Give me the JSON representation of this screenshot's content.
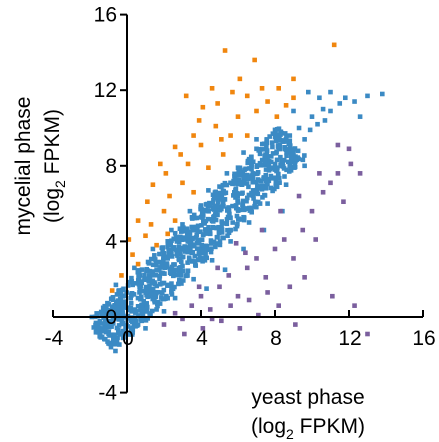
{
  "chart_data": {
    "type": "scatter",
    "xlabel": [
      "yeast phase",
      "(log",
      "2",
      " FPKM)"
    ],
    "ylabel": [
      "mycelial phase",
      "(log",
      "2",
      " FPKM)"
    ],
    "xlim": [
      -4,
      16
    ],
    "ylim": [
      -4,
      16
    ],
    "x_ticks": [
      "-4",
      "0",
      "4",
      "8",
      "12",
      "16"
    ],
    "y_ticks": [
      "-4",
      "0",
      "4",
      "8",
      "12",
      "16"
    ],
    "grid": false,
    "legend": "none",
    "series": [
      {
        "color": "#3b8ac4",
        "points": [
          [
            -1.5,
            -0.6
          ],
          [
            -1.2,
            0.3
          ],
          [
            -0.8,
            -0.2
          ],
          [
            -0.5,
            0.8
          ],
          [
            -0.3,
            -0.9
          ],
          [
            0,
            0
          ],
          [
            0.2,
            1.0
          ],
          [
            0.5,
            0.3
          ],
          [
            0.8,
            1.8
          ],
          [
            1.0,
            0.6
          ],
          [
            1.2,
            2.2
          ],
          [
            1.5,
            1.3
          ],
          [
            1.8,
            2.9
          ],
          [
            2.0,
            1.8
          ],
          [
            2.2,
            3.1
          ],
          [
            2.5,
            2.4
          ],
          [
            2.8,
            3.7
          ],
          [
            3.0,
            2.7
          ],
          [
            3.2,
            4.1
          ],
          [
            3.5,
            3.4
          ],
          [
            3.8,
            4.6
          ],
          [
            4.0,
            3.6
          ],
          [
            4.2,
            5.0
          ],
          [
            4.5,
            4.4
          ],
          [
            4.8,
            5.6
          ],
          [
            5.0,
            4.7
          ],
          [
            5.2,
            6.0
          ],
          [
            5.5,
            5.3
          ],
          [
            5.8,
            6.6
          ],
          [
            6.0,
            5.7
          ],
          [
            6.2,
            7.0
          ],
          [
            6.5,
            6.3
          ],
          [
            6.8,
            7.6
          ],
          [
            7.0,
            6.7
          ],
          [
            7.2,
            8.1
          ],
          [
            7.5,
            7.3
          ],
          [
            7.8,
            8.5
          ],
          [
            8.0,
            7.8
          ],
          [
            8.2,
            8.9
          ],
          [
            8.5,
            8.3
          ],
          [
            8.8,
            9.6
          ],
          [
            9.0,
            8.7
          ],
          [
            9.3,
            10.0
          ],
          [
            9.6,
            9.4
          ],
          [
            10.0,
            10.6
          ],
          [
            10.3,
            10.2
          ],
          [
            10.6,
            11.0
          ],
          [
            11.0,
            10.9
          ],
          [
            11.5,
            11.3
          ],
          [
            12.3,
            11.4
          ],
          [
            13.0,
            11.7
          ],
          [
            13.8,
            11.8
          ],
          [
            9.8,
            11.9
          ],
          [
            10.4,
            11.6
          ],
          [
            11.0,
            11.9
          ],
          [
            12.6,
            10.6
          ],
          [
            7.0,
            9.4
          ],
          [
            6.3,
            8.7
          ],
          [
            5.4,
            7.6
          ],
          [
            4.4,
            6.7
          ],
          [
            3.4,
            5.6
          ],
          [
            2.4,
            4.6
          ],
          [
            1.4,
            3.6
          ],
          [
            0.4,
            2.6
          ],
          [
            -0.6,
            1.7
          ],
          [
            2.6,
            1.0
          ],
          [
            3.6,
            2.0
          ],
          [
            4.6,
            3.0
          ],
          [
            5.6,
            4.0
          ],
          [
            6.6,
            5.0
          ],
          [
            7.6,
            6.0
          ],
          [
            8.6,
            7.0
          ],
          [
            9.6,
            8.0
          ],
          [
            -1.0,
            -1.4
          ],
          [
            0.6,
            -0.4
          ],
          [
            1.6,
            0.4
          ],
          [
            3.0,
            4.9
          ],
          [
            4.0,
            5.9
          ],
          [
            5.0,
            6.9
          ],
          [
            6.0,
            7.9
          ],
          [
            7.0,
            8.9
          ],
          [
            8.0,
            9.9
          ],
          [
            9.0,
            10.9
          ],
          [
            2.0,
            0.3
          ],
          [
            1.0,
            -0.6
          ],
          [
            5.3,
            2.5
          ],
          [
            6.3,
            3.6
          ],
          [
            4.3,
            1.5
          ],
          [
            7.4,
            4.6
          ],
          [
            8.4,
            5.6
          ],
          [
            -1.9,
            0.0
          ],
          [
            -0.9,
            -0.4
          ],
          [
            0.1,
            0.4
          ],
          [
            3.9,
            3.9
          ],
          [
            5.9,
            5.9
          ],
          [
            7.9,
            7.9
          ],
          [
            9.9,
            9.9
          ],
          [
            10.7,
            10.4
          ],
          [
            11.8,
            11.6
          ],
          [
            2.9,
            2.3
          ]
        ]
      },
      {
        "color": "#f0860e",
        "points": [
          [
            -0.3,
            2.2
          ],
          [
            0.3,
            3.3
          ],
          [
            0.6,
            2.8
          ],
          [
            1.0,
            4.3
          ],
          [
            1.3,
            4.9
          ],
          [
            1.6,
            3.8
          ],
          [
            2.0,
            5.6
          ],
          [
            2.3,
            6.4
          ],
          [
            2.6,
            5.1
          ],
          [
            3.0,
            7.1
          ],
          [
            3.3,
            8.1
          ],
          [
            3.6,
            6.6
          ],
          [
            4.0,
            9.1
          ],
          [
            4.4,
            7.9
          ],
          [
            4.8,
            10.1
          ],
          [
            5.2,
            8.6
          ],
          [
            5.6,
            9.6
          ],
          [
            6.0,
            10.6
          ],
          [
            6.5,
            9.6
          ],
          [
            7.0,
            10.9
          ],
          [
            7.6,
            11.4
          ],
          [
            8.1,
            10.6
          ],
          [
            8.6,
            11.2
          ],
          [
            9.0,
            11.6
          ],
          [
            3.2,
            11.7
          ],
          [
            4.6,
            12.1
          ],
          [
            6.9,
            13.6
          ],
          [
            9.0,
            12.6
          ],
          [
            5.3,
            14.1
          ],
          [
            11.2,
            14.4
          ],
          [
            1.1,
            6.1
          ],
          [
            2.1,
            7.6
          ],
          [
            0.6,
            5.1
          ],
          [
            4.1,
            11.1
          ],
          [
            5.7,
            11.9
          ],
          [
            3.6,
            9.6
          ],
          [
            7.3,
            12.1
          ],
          [
            2.6,
            9.0
          ],
          [
            1.8,
            8.1
          ],
          [
            6.1,
            12.6
          ],
          [
            -0.8,
            1.4
          ],
          [
            0.1,
            4.1
          ],
          [
            1.4,
            7.0
          ],
          [
            2.9,
            8.6
          ],
          [
            4.9,
            11.3
          ],
          [
            6.5,
            11.7
          ],
          [
            8.2,
            12.1
          ],
          [
            3.9,
            10.4
          ],
          [
            2.2,
            4.4
          ],
          [
            5.1,
            9.4
          ]
        ]
      },
      {
        "color": "#7b5f9e",
        "points": [
          [
            2.0,
            -0.4
          ],
          [
            2.6,
            0.2
          ],
          [
            3.0,
            -0.1
          ],
          [
            3.5,
            0.6
          ],
          [
            4.0,
            1.1
          ],
          [
            4.5,
            0.4
          ],
          [
            5.0,
            1.6
          ],
          [
            5.5,
            2.2
          ],
          [
            6.0,
            1.1
          ],
          [
            6.5,
            2.6
          ],
          [
            7.0,
            3.1
          ],
          [
            7.5,
            2.1
          ],
          [
            8.0,
            3.6
          ],
          [
            8.5,
            4.1
          ],
          [
            9.0,
            3.1
          ],
          [
            9.5,
            4.6
          ],
          [
            10.0,
            5.6
          ],
          [
            10.6,
            6.6
          ],
          [
            11.0,
            7.1
          ],
          [
            11.4,
            7.6
          ],
          [
            12.1,
            8.1
          ],
          [
            12.3,
            0.6
          ],
          [
            11.1,
            1.1
          ],
          [
            9.1,
            -0.4
          ],
          [
            8.2,
            0.6
          ],
          [
            7.1,
            0.1
          ],
          [
            6.1,
            -0.6
          ],
          [
            5.1,
            -0.2
          ],
          [
            13.0,
            -0.9
          ],
          [
            4.1,
            -0.6
          ],
          [
            3.1,
            -0.9
          ],
          [
            12.6,
            7.6
          ],
          [
            11.7,
            6.1
          ],
          [
            10.2,
            4.1
          ],
          [
            9.6,
            2.1
          ],
          [
            8.8,
            1.6
          ],
          [
            7.6,
            1.3
          ],
          [
            6.6,
            0.9
          ],
          [
            5.6,
            0.6
          ],
          [
            4.6,
            -0.1
          ],
          [
            6.4,
            3.4
          ],
          [
            7.3,
            4.6
          ],
          [
            8.3,
            5.6
          ],
          [
            9.3,
            6.4
          ],
          [
            10.4,
            7.6
          ],
          [
            11.4,
            9.1
          ],
          [
            12.0,
            8.9
          ],
          [
            5.9,
            3.9
          ],
          [
            4.9,
            2.6
          ],
          [
            3.9,
            1.6
          ]
        ]
      }
    ]
  }
}
